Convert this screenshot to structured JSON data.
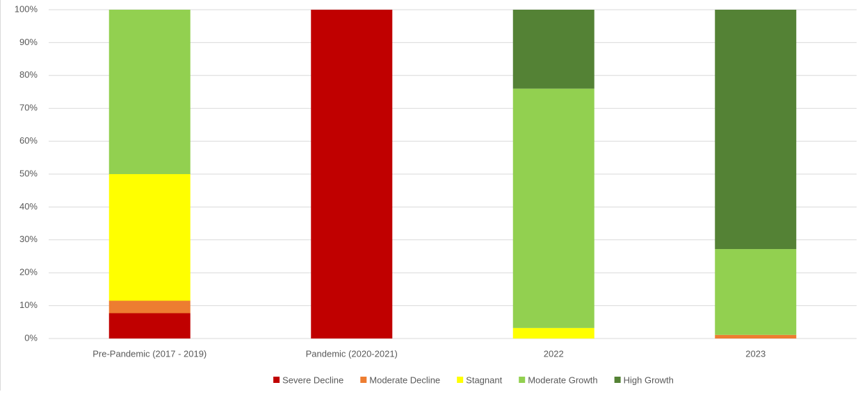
{
  "chart_data": {
    "type": "stacked_bar",
    "categories": [
      "Pre-Pandemic (2017 - 2019)",
      "Pandemic (2020-2021)",
      "2022",
      "2023"
    ],
    "series": [
      {
        "name": "Severe Decline",
        "color": "#c00000",
        "values": [
          7.7,
          100,
          0,
          0
        ]
      },
      {
        "name": "Moderate Decline",
        "color": "#ed7d31",
        "values": [
          3.8,
          0,
          0,
          1.1
        ]
      },
      {
        "name": "Stagnant",
        "color": "#ffff00",
        "values": [
          38.5,
          0,
          3.2,
          0
        ]
      },
      {
        "name": "Moderate Growth",
        "color": "#92d050",
        "values": [
          50,
          0,
          72.8,
          26.1
        ]
      },
      {
        "name": "High Growth",
        "color": "#548235",
        "values": [
          0,
          0,
          24,
          72.8
        ]
      }
    ],
    "ylim": [
      0,
      100
    ],
    "yticks": [
      {
        "value": 0,
        "label": "0%"
      },
      {
        "value": 10,
        "label": "10%"
      },
      {
        "value": 20,
        "label": "20%"
      },
      {
        "value": 30,
        "label": "30%"
      },
      {
        "value": 40,
        "label": "40%"
      },
      {
        "value": 50,
        "label": "50%"
      },
      {
        "value": 60,
        "label": "60%"
      },
      {
        "value": 70,
        "label": "70%"
      },
      {
        "value": 80,
        "label": "80%"
      },
      {
        "value": 90,
        "label": "90%"
      },
      {
        "value": 100,
        "label": "100%"
      }
    ],
    "grid": true,
    "legend": "bottom"
  }
}
